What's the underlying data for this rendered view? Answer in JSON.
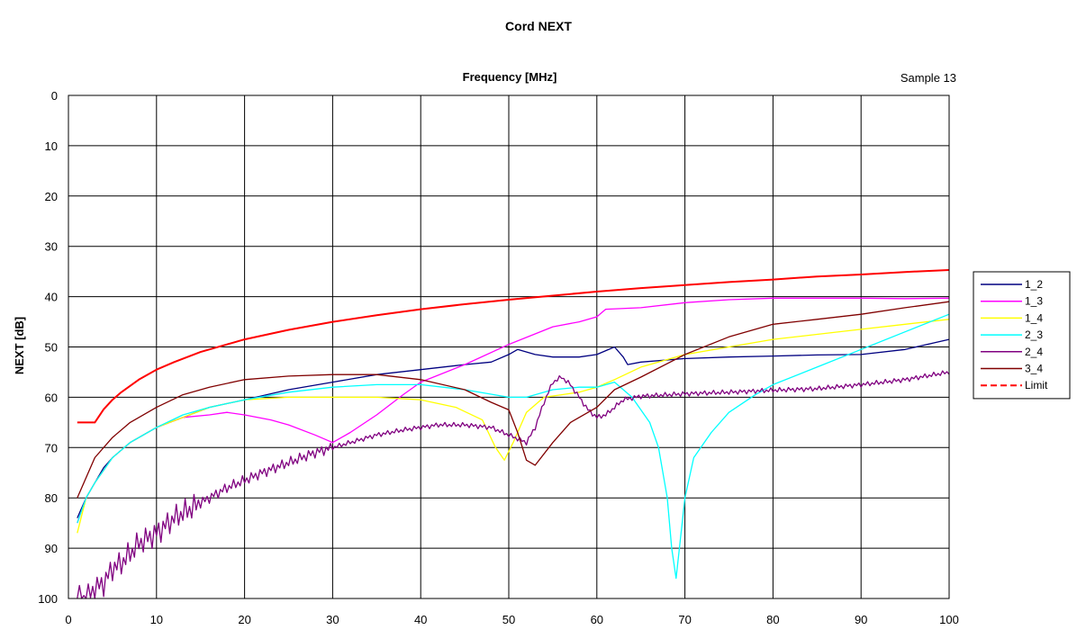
{
  "chart_data": {
    "type": "line",
    "title": "Cord NEXT",
    "xlabel": "Frequency [MHz]",
    "ylabel": "NEXT [dB]",
    "annotation": "Sample 13",
    "xlim": [
      0,
      100
    ],
    "ylim": [
      0,
      100
    ],
    "y_inverted": true,
    "x_axis_position": "top",
    "grid": true,
    "legend_position": "right",
    "xticks": [
      "0",
      "10",
      "20",
      "30",
      "40",
      "50",
      "60",
      "70",
      "80",
      "90",
      "100"
    ],
    "yticks": [
      "0",
      "10",
      "20",
      "30",
      "40",
      "50",
      "60",
      "70",
      "80",
      "90",
      "100"
    ],
    "series": [
      {
        "name": "1_2",
        "color": "#000080",
        "dash": false,
        "x": [
          1,
          2,
          3,
          4,
          5,
          7,
          10,
          13,
          16,
          20,
          25,
          30,
          35,
          40,
          45,
          48,
          50,
          51,
          53,
          55,
          58,
          60,
          62,
          63,
          63.5,
          65,
          70,
          75,
          80,
          85,
          90,
          95,
          100
        ],
        "y": [
          84,
          80,
          77,
          74,
          72,
          69,
          66,
          64,
          62,
          60.5,
          58.5,
          57,
          55.5,
          54.5,
          53.5,
          53,
          51.5,
          50.5,
          51.5,
          52,
          52,
          51.5,
          50,
          52,
          53.5,
          53,
          52.3,
          52,
          51.8,
          51.6,
          51.5,
          50.5,
          48.5
        ]
      },
      {
        "name": "1_3",
        "color": "#FF00FF",
        "dash": false,
        "x": [
          1,
          2,
          3,
          5,
          7,
          10,
          13,
          16,
          18,
          20,
          23,
          25,
          28,
          30,
          32,
          35,
          38,
          40,
          45,
          50,
          55,
          58,
          60,
          61,
          65,
          70,
          75,
          80,
          85,
          90,
          95,
          100
        ],
        "y": [
          85,
          80,
          77,
          72,
          69,
          66,
          64,
          63.5,
          63,
          63.5,
          64.5,
          65.5,
          67.5,
          69,
          67,
          63.5,
          59.5,
          57,
          53.5,
          49.5,
          46,
          45,
          44,
          42.5,
          42.2,
          41.2,
          40.6,
          40.3,
          40.3,
          40.3,
          40.4,
          40.3
        ]
      },
      {
        "name": "1_4",
        "color": "#FFFF00",
        "dash": false,
        "x": [
          1,
          2,
          3,
          5,
          7,
          10,
          13,
          16,
          20,
          25,
          30,
          35,
          40,
          44,
          47,
          48.5,
          49.5,
          50.5,
          52,
          54,
          56,
          58,
          60,
          62,
          65,
          70,
          75,
          80,
          85,
          90,
          95,
          100
        ],
        "y": [
          87,
          80,
          77,
          72,
          69,
          66,
          64,
          62,
          60.5,
          60,
          60,
          60,
          60.5,
          62,
          64.5,
          70,
          72.5,
          69,
          63,
          60,
          59.5,
          59,
          58,
          56.5,
          54,
          51.5,
          50,
          48.5,
          47.5,
          46.5,
          45.5,
          44.5
        ]
      },
      {
        "name": "2_3",
        "color": "#00FFFF",
        "dash": false,
        "x": [
          1,
          2,
          3,
          5,
          7,
          10,
          13,
          16,
          20,
          25,
          30,
          35,
          40,
          45,
          50,
          52,
          55,
          58,
          60,
          62,
          64,
          66,
          67,
          68,
          68.5,
          69,
          69.5,
          70,
          71,
          73,
          75,
          78,
          80,
          85,
          90,
          95,
          100
        ],
        "y": [
          85,
          80,
          77,
          72,
          69,
          66,
          63.5,
          62,
          60.5,
          59,
          58,
          57.5,
          57.5,
          58.5,
          60,
          60,
          58.5,
          58,
          58,
          57,
          60,
          65,
          70,
          80,
          90,
          96,
          88,
          80,
          72,
          67,
          63,
          59.5,
          57.5,
          54,
          50.5,
          47,
          43.5
        ]
      },
      {
        "name": "2_4",
        "color": "#800080",
        "dash": false,
        "noisy": true,
        "x": [
          1,
          2,
          3,
          4,
          5,
          6,
          8,
          10,
          12,
          15,
          18,
          20,
          22,
          25,
          28,
          30,
          33,
          35,
          38,
          40,
          42,
          45,
          48,
          50,
          52,
          53,
          54,
          55,
          56,
          57,
          58,
          59,
          60,
          61,
          62,
          63,
          65,
          70,
          75,
          80,
          85,
          90,
          95,
          100
        ],
        "y": [
          100,
          100,
          98,
          97,
          94,
          93,
          89,
          87,
          84,
          81,
          78,
          76.5,
          75,
          73,
          71,
          70,
          68.5,
          67.5,
          66.5,
          66,
          65.5,
          65.5,
          66,
          67.5,
          69,
          66,
          61,
          57,
          56,
          57.5,
          60,
          62.5,
          64,
          63.5,
          62,
          60.5,
          59.8,
          59.3,
          59,
          58.6,
          58.3,
          57.5,
          56.5,
          55
        ]
      },
      {
        "name": "3_4",
        "color": "#800000",
        "dash": false,
        "x": [
          1,
          2,
          3,
          5,
          7,
          10,
          13,
          16,
          20,
          25,
          30,
          35,
          40,
          45,
          48,
          50,
          51,
          52,
          53,
          55,
          57,
          60,
          62,
          65,
          70,
          75,
          80,
          85,
          90,
          95,
          100
        ],
        "y": [
          80,
          76,
          72,
          68,
          65,
          62,
          59.5,
          58,
          56.5,
          55.8,
          55.5,
          55.5,
          56.5,
          58.5,
          61,
          62.5,
          67,
          72.5,
          73.5,
          69,
          65,
          62,
          58.5,
          56,
          51.5,
          48,
          45.5,
          44.5,
          43.5,
          42.2,
          41
        ]
      },
      {
        "name": "Limit",
        "color": "#FF0000",
        "dash": true,
        "x": [
          1,
          3,
          4,
          5,
          6,
          8,
          10,
          12,
          15,
          20,
          25,
          30,
          35,
          40,
          45,
          50,
          55,
          60,
          65,
          70,
          75,
          80,
          85,
          90,
          95,
          100
        ],
        "y": [
          65,
          65,
          62.4,
          60.5,
          59.0,
          56.5,
          54.5,
          53.0,
          51.0,
          48.5,
          46.6,
          45.0,
          43.7,
          42.5,
          41.5,
          40.6,
          39.8,
          39.0,
          38.3,
          37.7,
          37.1,
          36.6,
          36.0,
          35.6,
          35.1,
          34.7
        ]
      }
    ]
  }
}
